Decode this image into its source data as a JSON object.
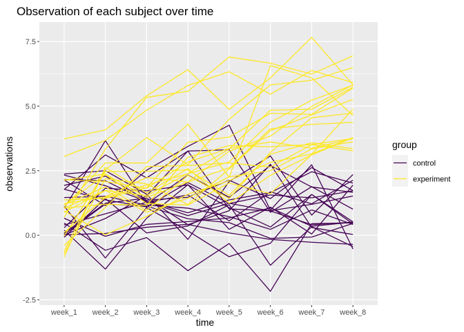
{
  "chart_data": {
    "type": "line",
    "title": "Observation of each subject over time",
    "xlabel": "time",
    "ylabel": "observations",
    "categories": [
      "week_1",
      "week_2",
      "week_3",
      "week_4",
      "week_5",
      "week_6",
      "week_7",
      "week_8"
    ],
    "ylim": [
      -2.7,
      8.25
    ],
    "yticks": [
      -2.5,
      0,
      2.5,
      5,
      7.5
    ],
    "ytick_labels": [
      "-2.5",
      "0.0",
      "2.5",
      "5.0",
      "7.5"
    ],
    "grid": true,
    "legend": {
      "title": "group",
      "position": "right",
      "entries": [
        {
          "name": "control",
          "color": "#440154"
        },
        {
          "name": "experiment",
          "color": "#FDE725"
        }
      ]
    },
    "series": [
      {
        "group": "control",
        "values": [
          0.2,
          -1.31,
          0.66,
          1.96,
          0.23,
          1.09,
          0.05,
          1.94
        ]
      },
      {
        "group": "control",
        "values": [
          1.13,
          -0.88,
          1.07,
          0.17,
          -0.83,
          -0.31,
          1.58,
          0.44
        ]
      },
      {
        "group": "control",
        "values": [
          1.77,
          3.11,
          2.22,
          3.26,
          3.31,
          0.89,
          1.88,
          1.01
        ]
      },
      {
        "group": "control",
        "values": [
          1.04,
          3.66,
          1.22,
          2.33,
          1.47,
          2.7,
          1.87,
          1.66
        ]
      },
      {
        "group": "control",
        "values": [
          0.47,
          -0.58,
          -0.09,
          -1.37,
          -0.32,
          -2.17,
          0.45,
          0.48
        ]
      },
      {
        "group": "control",
        "values": [
          2.37,
          2.5,
          1.59,
          -0.16,
          2.08,
          3.07,
          0.78,
          2.35
        ]
      },
      {
        "group": "control",
        "values": [
          0.03,
          1.21,
          1.13,
          0.64,
          0.49,
          -0.12,
          -0.07,
          0.46
        ]
      },
      {
        "group": "control",
        "values": [
          -0.08,
          1.42,
          0.09,
          0.36,
          1.18,
          -1.16,
          0.33,
          -0.44
        ]
      },
      {
        "group": "control",
        "values": [
          0.08,
          1.24,
          1.44,
          0.41,
          0.95,
          2.75,
          0.3,
          0.03
        ]
      },
      {
        "group": "control",
        "values": [
          2.14,
          1.15,
          2.52,
          3.44,
          4.26,
          0.97,
          2.73,
          -0.53
        ]
      },
      {
        "group": "control",
        "values": [
          1.46,
          1.51,
          1.17,
          1.05,
          0.72,
          0.23,
          0.98,
          0.42
        ]
      },
      {
        "group": "control",
        "values": [
          1.78,
          1.37,
          1.1,
          2.04,
          1.23,
          1.56,
          1.45,
          1.72
        ]
      },
      {
        "group": "control",
        "values": [
          0.29,
          1.82,
          1.72,
          1.95,
          1.07,
          0.32,
          1.58,
          0.52
        ]
      },
      {
        "group": "control",
        "values": [
          2.33,
          1.92,
          1.31,
          0.76,
          1.24,
          0.94,
          0.41,
          0.51
        ]
      },
      {
        "group": "control",
        "values": [
          0.4,
          0.83,
          1.28,
          1.56,
          0.56,
          1.68,
          1.22,
          2.13
        ]
      },
      {
        "group": "control",
        "values": [
          0.01,
          0.65,
          1.53,
          3.26,
          1.02,
          0.95,
          1.2,
          1.52
        ]
      },
      {
        "group": "control",
        "values": [
          1.93,
          2.29,
          1.36,
          1.47,
          2.13,
          1.42,
          2.62,
          1.73
        ]
      },
      {
        "group": "control",
        "values": [
          0.66,
          -0.04,
          0.42,
          0.53,
          0.67,
          1.06,
          0.35,
          0.51
        ]
      },
      {
        "group": "control",
        "values": [
          2.16,
          2.11,
          1.32,
          0.87,
          1.37,
          1.65,
          2.46,
          2.02
        ]
      },
      {
        "group": "control",
        "values": [
          0.02,
          0.07,
          0.31,
          0.42,
          0.09,
          -0.16,
          -0.27,
          -0.35
        ]
      },
      {
        "group": "experiment",
        "values": [
          3.05,
          3.67,
          4.84,
          5.8,
          6.33,
          5.46,
          6.38,
          5.91
        ]
      },
      {
        "group": "experiment",
        "values": [
          -0.84,
          2.63,
          1.64,
          2.58,
          1.24,
          2.32,
          3.11,
          3.78
        ]
      },
      {
        "group": "experiment",
        "values": [
          2.15,
          2.08,
          1.82,
          2.84,
          3.36,
          3.61,
          3.37,
          3.74
        ]
      },
      {
        "group": "experiment",
        "values": [
          -0.62,
          2.54,
          3.78,
          2.73,
          4.49,
          5.82,
          6.0,
          6.49
        ]
      },
      {
        "group": "experiment",
        "values": [
          0.7,
          3.33,
          5.34,
          5.57,
          6.9,
          6.66,
          6.24,
          6.95
        ]
      },
      {
        "group": "experiment",
        "values": [
          3.73,
          4.08,
          5.4,
          6.41,
          4.87,
          6.09,
          7.66,
          5.83
        ]
      },
      {
        "group": "experiment",
        "values": [
          1.18,
          2.35,
          1.23,
          1.17,
          2.02,
          1.61,
          3.13,
          4.88
        ]
      },
      {
        "group": "experiment",
        "values": [
          1.37,
          1.43,
          1.84,
          3.6,
          3.8,
          4.72,
          4.68,
          5.7
        ]
      },
      {
        "group": "experiment",
        "values": [
          -0.4,
          1.08,
          2.66,
          2.7,
          2.8,
          2.64,
          3.51,
          3.27
        ]
      },
      {
        "group": "experiment",
        "values": [
          1.09,
          2.8,
          2.8,
          4.3,
          2.25,
          6.57,
          6.09,
          4.64
        ]
      },
      {
        "group": "experiment",
        "values": [
          0.95,
          0.02,
          0.73,
          1.59,
          2.11,
          2.82,
          3.15,
          3.78
        ]
      },
      {
        "group": "experiment",
        "values": [
          0.11,
          1.46,
          1.95,
          2.38,
          2.84,
          4.37,
          5.23,
          5.81
        ]
      },
      {
        "group": "experiment",
        "values": [
          1.05,
          1.74,
          0.89,
          1.44,
          2.26,
          2.5,
          3.34,
          3.62
        ]
      },
      {
        "group": "experiment",
        "values": [
          0.89,
          1.73,
          1.54,
          2.39,
          3.34,
          4.84,
          4.88,
          5.73
        ]
      },
      {
        "group": "experiment",
        "values": [
          -0.03,
          2.47,
          2.48,
          2.53,
          1.55,
          3.14,
          3.58,
          3.35
        ]
      },
      {
        "group": "experiment",
        "values": [
          1.05,
          1.2,
          1.16,
          3.02,
          3.47,
          3.43,
          3.51,
          3.75
        ]
      },
      {
        "group": "experiment",
        "values": [
          1.19,
          1.87,
          0.97,
          2.32,
          1.42,
          3.21,
          4.55,
          4.73
        ]
      },
      {
        "group": "experiment",
        "values": [
          2.13,
          2.37,
          1.47,
          2.06,
          3.25,
          3.84,
          4.99,
          5.82
        ]
      },
      {
        "group": "experiment",
        "values": [
          -0.72,
          2.19,
          1.99,
          1.19,
          2.57,
          4.05,
          4.66,
          5.26
        ]
      },
      {
        "group": "experiment",
        "values": [
          1.22,
          1.49,
          2.24,
          2.06,
          2.61,
          4.12,
          4.29,
          4.37
        ]
      }
    ]
  }
}
